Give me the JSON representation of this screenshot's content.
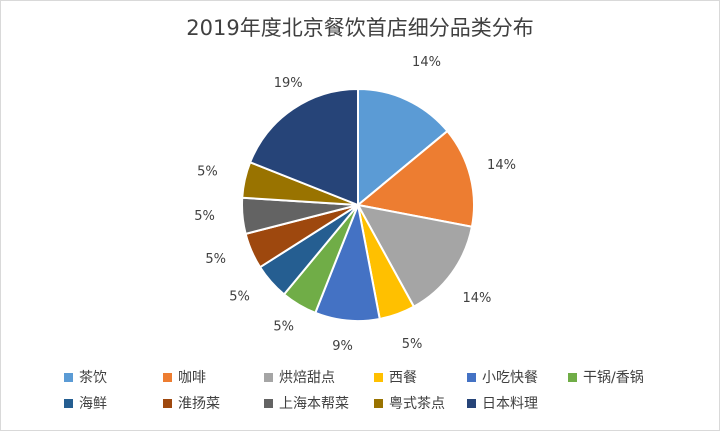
{
  "chart_data": {
    "type": "pie",
    "title": "2019年度北京餐饮首店细分品类分布",
    "categories": [
      "茶饮",
      "咖啡",
      "烘焙甜点",
      "西餐",
      "小吃快餐",
      "干锅/香锅",
      "海鲜",
      "淮扬菜",
      "上海本帮菜",
      "粤式茶点",
      "日本料理"
    ],
    "values": [
      14,
      14,
      14,
      5,
      9,
      5,
      5,
      5,
      5,
      5,
      19
    ],
    "data_labels": [
      "14%",
      "14%",
      "14%",
      "5%",
      "9%",
      "5%",
      "5%",
      "5%",
      "5%",
      "5%",
      "19%"
    ],
    "colors": [
      "#5b9bd5",
      "#ed7d31",
      "#a5a5a5",
      "#ffc000",
      "#4472c4",
      "#70ad47",
      "#255e91",
      "#9e480e",
      "#636363",
      "#997300",
      "#264478"
    ],
    "legend_position": "bottom"
  }
}
